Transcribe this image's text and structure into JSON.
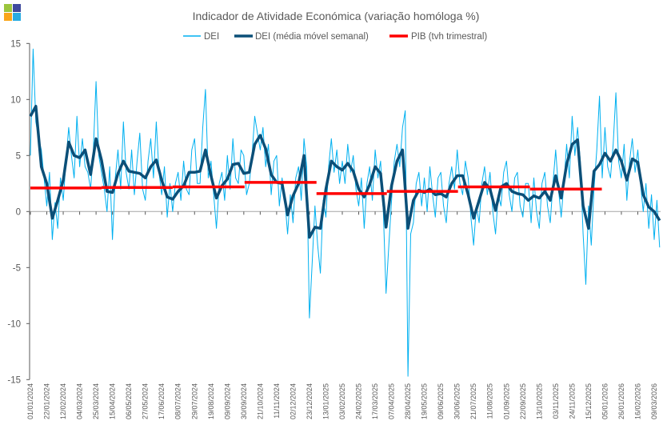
{
  "logo": {
    "colors": [
      "#9BC53D",
      "#3F4A9E",
      "#F9A51A",
      "#29ABE2"
    ]
  },
  "chart_data": {
    "type": "line",
    "title": "Indicador de Atividade Económica (variação homóloga %)",
    "xlabel": "",
    "ylabel": "",
    "ylim": [
      -15,
      15
    ],
    "yticks": [
      "15",
      "10",
      "5",
      "0",
      "-5",
      "-10",
      "-15"
    ],
    "xlim": [
      "01/01/2024",
      "14/03/2026"
    ],
    "xtick_labels": [
      "01/01/2024",
      "22/01/2024",
      "12/02/2024",
      "04/03/2024",
      "25/03/2024",
      "15/04/2024",
      "06/05/2024",
      "27/05/2024",
      "17/06/2024",
      "08/07/2024",
      "29/07/2024",
      "19/08/2024",
      "09/09/2024",
      "30/09/2024",
      "21/10/2024",
      "11/11/2024",
      "02/12/2024",
      "23/12/2024",
      "13/01/2025",
      "03/02/2025",
      "24/02/2025",
      "17/03/2025",
      "07/04/2025",
      "28/04/2025",
      "19/05/2025",
      "09/06/2025",
      "30/06/2025",
      "21/07/2025",
      "11/08/2025",
      "01/09/2025",
      "22/09/2025",
      "13/10/2025",
      "03/11/2025",
      "24/11/2025",
      "15/12/2025",
      "05/01/2026",
      "26/01/2026",
      "16/02/2026",
      "09/03/2026"
    ],
    "legend_position": "top",
    "grid": false,
    "series": [
      {
        "name": "DEI",
        "color": "#00B0F0",
        "x_start": "01/01/2024",
        "x_step_days": 3.5,
        "values": [
          5.0,
          14.5,
          8.0,
          6.5,
          5.5,
          3.0,
          0.5,
          3.5,
          -2.5,
          0.8,
          -1.5,
          3.0,
          1.0,
          4.5,
          7.5,
          5.0,
          3.0,
          8.5,
          4.0,
          6.5,
          4.0,
          3.5,
          2.0,
          5.5,
          11.6,
          5.0,
          3.5,
          2.0,
          0.0,
          4.0,
          -2.5,
          3.0,
          5.5,
          2.0,
          8.0,
          3.5,
          2.0,
          5.5,
          1.5,
          4.5,
          7.0,
          2.0,
          1.0,
          4.5,
          6.5,
          3.0,
          8.0,
          3.5,
          1.5,
          4.0,
          -0.5,
          2.5,
          0.0,
          2.5,
          3.5,
          1.0,
          4.5,
          2.0,
          1.5,
          5.5,
          6.5,
          2.5,
          2.5,
          7.5,
          10.9,
          3.0,
          4.5,
          1.5,
          -1.5,
          2.5,
          3.5,
          1.0,
          5.0,
          2.0,
          6.5,
          3.0,
          2.5,
          5.5,
          5.0,
          1.5,
          2.5,
          5.0,
          8.5,
          7.0,
          5.5,
          7.5,
          4.0,
          6.0,
          1.5,
          4.5,
          5.0,
          0.5,
          3.0,
          1.0,
          -2.0,
          1.5,
          -1.0,
          3.0,
          4.0,
          1.0,
          6.5,
          4.0,
          -9.5,
          -4.5,
          0.5,
          -3.0,
          -5.5,
          1.0,
          -0.5,
          4.0,
          6.5,
          3.5,
          5.5,
          2.5,
          4.5,
          2.5,
          6.0,
          3.5,
          5.0,
          2.0,
          0.5,
          3.0,
          -1.5,
          2.5,
          4.0,
          1.0,
          5.5,
          3.0,
          4.5,
          0.0,
          -7.3,
          -3.0,
          1.0,
          4.5,
          6.0,
          4.0,
          7.5,
          9.0,
          -14.7,
          -2.0,
          -1.0,
          2.5,
          3.5,
          0.5,
          3.0,
          0.0,
          4.0,
          1.5,
          -0.5,
          3.0,
          3.5,
          0.5,
          -1.0,
          2.5,
          4.0,
          2.0,
          5.5,
          2.5,
          1.5,
          4.5,
          3.0,
          -0.5,
          -3.0,
          0.5,
          -1.0,
          2.5,
          4.0,
          1.5,
          3.5,
          0.0,
          -2.0,
          1.5,
          0.5,
          3.5,
          4.5,
          1.5,
          0.0,
          3.0,
          3.5,
          0.5,
          -0.5,
          2.5,
          2.5,
          -1.0,
          3.0,
          0.0,
          -1.5,
          2.5,
          3.5,
          0.5,
          -1.0,
          2.5,
          5.5,
          2.0,
          -0.5,
          2.5,
          6.0,
          3.0,
          8.5,
          5.0,
          7.5,
          4.5,
          -2.0,
          -6.5,
          0.5,
          -3.0,
          2.0,
          5.5,
          10.3,
          3.0,
          7.5,
          4.0,
          3.0,
          6.0,
          10.6,
          4.5,
          3.0,
          6.0,
          1.0,
          4.5,
          6.5,
          3.5,
          5.5,
          2.5,
          0.0,
          2.5,
          -1.5,
          1.5,
          -2.5,
          1.0,
          -3.2
        ]
      },
      {
        "name": "DEI (média móvel semanal)",
        "color": "#0B4F78",
        "x_start": "01/01/2024",
        "x_step_days": 7,
        "values": [
          8.5,
          9.4,
          4.0,
          2.5,
          -0.6,
          1.0,
          2.8,
          6.2,
          5.0,
          4.8,
          5.5,
          3.3,
          6.5,
          4.6,
          1.8,
          1.7,
          3.4,
          4.5,
          3.6,
          3.5,
          3.4,
          3.0,
          4.0,
          4.6,
          2.8,
          1.3,
          1.1,
          1.8,
          2.3,
          3.5,
          3.5,
          3.6,
          5.5,
          3.2,
          1.2,
          2.3,
          2.9,
          4.2,
          4.3,
          3.4,
          3.5,
          6.0,
          6.8,
          5.6,
          3.3,
          2.6,
          2.5,
          -0.3,
          1.4,
          2.5,
          5.0,
          -2.3,
          -1.4,
          -1.5,
          2.0,
          4.5,
          4.0,
          3.7,
          4.3,
          3.6,
          2.0,
          1.3,
          2.4,
          4.0,
          3.4,
          -1.4,
          2.3,
          4.5,
          5.5,
          -1.5,
          1.0,
          1.9,
          1.7,
          2.0,
          1.5,
          1.6,
          1.3,
          2.5,
          3.2,
          3.2,
          1.5,
          -0.6,
          1.0,
          2.6,
          2.0,
          0.1,
          2.2,
          2.5,
          1.8,
          1.6,
          1.5,
          1.0,
          1.4,
          1.2,
          1.8,
          1.0,
          3.2,
          1.2,
          4.2,
          6.0,
          6.4,
          0.5,
          -1.5,
          3.6,
          4.2,
          5.2,
          4.5,
          5.5,
          4.5,
          2.8,
          4.7,
          4.4,
          1.5,
          0.4,
          0.0,
          -0.8
        ]
      },
      {
        "name": "PIB (tvh trimestral)",
        "color": "#FF0000",
        "segments": [
          {
            "from": "01/01/2024",
            "to": "31/03/2024",
            "value": 2.1
          },
          {
            "from": "01/04/2024",
            "to": "30/06/2024",
            "value": 2.15
          },
          {
            "from": "01/07/2024",
            "to": "30/09/2024",
            "value": 2.2
          },
          {
            "from": "01/10/2024",
            "to": "31/12/2024",
            "value": 2.6
          },
          {
            "from": "01/01/2025",
            "to": "31/03/2025",
            "value": 1.6
          },
          {
            "from": "01/04/2025",
            "to": "30/06/2025",
            "value": 1.8
          },
          {
            "from": "01/07/2025",
            "to": "30/09/2025",
            "value": 2.2
          },
          {
            "from": "01/10/2025",
            "to": "31/12/2025",
            "value": 2.0
          }
        ]
      }
    ]
  }
}
